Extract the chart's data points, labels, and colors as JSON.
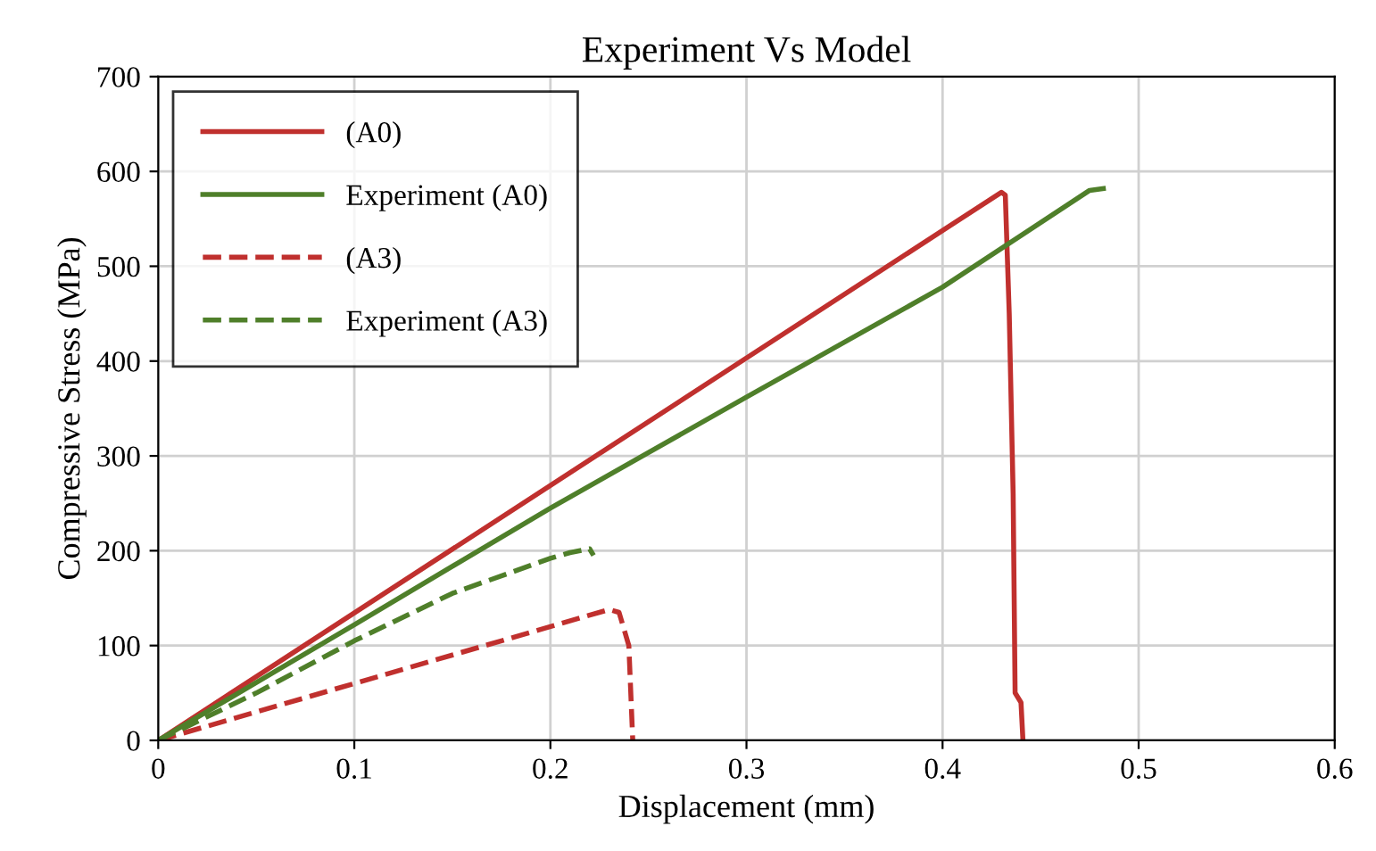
{
  "chart_data": {
    "type": "line",
    "title": "Experiment Vs Model",
    "xlabel": "Displacement (mm)",
    "ylabel": "Compressive Stress (MPa)",
    "xlim": [
      0,
      0.6
    ],
    "xticks": [
      0,
      0.1,
      0.2,
      0.3,
      0.4,
      0.5,
      0.6
    ],
    "ylim": [
      0,
      700
    ],
    "yticks": [
      0,
      100,
      200,
      300,
      400,
      500,
      600,
      700
    ],
    "grid": true,
    "legend": "top left",
    "marker": "none",
    "series": [
      {
        "name": "(A0)",
        "color": "#c0302e",
        "line_style": "solid",
        "x": [
          0,
          0.43,
          0.432,
          0.434,
          0.436,
          0.437,
          0.44,
          0.441
        ],
        "values": [
          0,
          578,
          575,
          450,
          260,
          50,
          40,
          0
        ]
      },
      {
        "name": "Experiment (A0)",
        "color": "#4f7f2a",
        "line_style": "solid",
        "x": [
          0,
          0.1,
          0.2,
          0.3,
          0.4,
          0.475,
          0.482
        ],
        "values": [
          0,
          122,
          245,
          362,
          478,
          580,
          582
        ]
      },
      {
        "name": "(A3)",
        "color": "#c0302e",
        "line_style": "dashed",
        "x": [
          0,
          0.23,
          0.235,
          0.24,
          0.242
        ],
        "values": [
          0,
          138,
          135,
          100,
          0
        ]
      },
      {
        "name": "Experiment (A3)",
        "color": "#4f7f2a",
        "line_style": "dashed",
        "x": [
          0,
          0.05,
          0.1,
          0.15,
          0.2,
          0.21,
          0.22,
          0.222
        ],
        "values": [
          0,
          50,
          105,
          155,
          192,
          198,
          202,
          195
        ]
      }
    ]
  }
}
